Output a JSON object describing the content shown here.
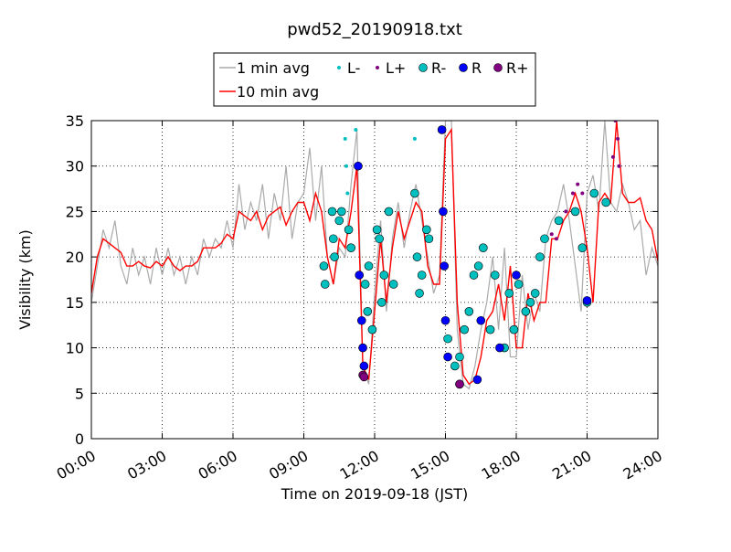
{
  "chart_data": {
    "type": "line",
    "title": "pwd52_20190918.txt",
    "x_label": "Time on 2019-09-18 (JST)",
    "y_label": "Visibility (km)",
    "xlim": [
      0,
      24
    ],
    "ylim": [
      0,
      35
    ],
    "xticks": [
      {
        "value": 0,
        "label": "00:00"
      },
      {
        "value": 3,
        "label": "03:00"
      },
      {
        "value": 6,
        "label": "06:00"
      },
      {
        "value": 9,
        "label": "09:00"
      },
      {
        "value": 12,
        "label": "12:00"
      },
      {
        "value": 15,
        "label": "15:00"
      },
      {
        "value": 18,
        "label": "18:00"
      },
      {
        "value": 21,
        "label": "21:00"
      },
      {
        "value": 24,
        "label": "24:00"
      }
    ],
    "yticks": [
      0,
      5,
      10,
      15,
      20,
      25,
      30,
      35
    ],
    "grid": true,
    "x": [
      0,
      0.25,
      0.5,
      0.75,
      1,
      1.25,
      1.5,
      1.75,
      2,
      2.25,
      2.5,
      2.75,
      3,
      3.25,
      3.5,
      3.75,
      4,
      4.25,
      4.5,
      4.75,
      5,
      5.25,
      5.5,
      5.75,
      6,
      6.25,
      6.5,
      6.75,
      7,
      7.25,
      7.5,
      7.75,
      8,
      8.25,
      8.5,
      8.75,
      9,
      9.25,
      9.5,
      9.75,
      10,
      10.25,
      10.5,
      10.75,
      11,
      11.25,
      11.5,
      11.75,
      12,
      12.25,
      12.5,
      12.75,
      13,
      13.25,
      13.5,
      13.75,
      14,
      14.25,
      14.5,
      14.75,
      15,
      15.25,
      15.5,
      15.75,
      16,
      16.25,
      16.5,
      16.75,
      17,
      17.25,
      17.5,
      17.75,
      18,
      18.25,
      18.5,
      18.75,
      19,
      19.25,
      19.5,
      19.75,
      20,
      20.25,
      20.5,
      20.75,
      21,
      21.25,
      21.5,
      21.75,
      22,
      22.25,
      22.5,
      22.75,
      23,
      23.25,
      23.5,
      23.75,
      24
    ],
    "series": [
      {
        "name": "1 min avg",
        "color": "#aaaaaa",
        "marker": "line",
        "values": [
          15,
          19,
          23,
          21,
          24,
          19,
          17,
          21,
          18,
          20,
          17,
          21,
          18,
          21,
          18,
          20,
          17,
          20,
          18,
          22,
          20,
          22,
          21,
          24,
          21,
          28,
          23,
          26,
          24,
          28,
          22,
          27,
          24,
          30,
          22,
          26,
          27,
          32,
          24,
          30,
          20,
          17,
          21,
          20,
          28,
          34,
          8,
          6,
          16,
          24,
          14,
          22,
          26,
          21,
          25,
          28,
          24,
          20,
          16,
          18,
          35,
          35,
          12,
          6,
          5.5,
          8,
          12,
          15,
          20,
          12,
          21,
          9,
          9,
          18,
          12,
          16,
          14,
          22,
          24,
          25,
          28,
          24,
          19,
          14,
          27,
          29,
          25,
          35,
          26,
          25,
          28,
          26,
          23,
          24,
          18,
          21,
          19
        ]
      },
      {
        "name": "10 min avg",
        "color": "#ff0000",
        "marker": "line",
        "values": [
          16,
          20,
          22,
          21.5,
          21,
          20.5,
          19,
          19,
          19.5,
          19,
          18.8,
          19.5,
          19,
          20,
          19,
          18.5,
          19,
          19,
          19.5,
          21,
          21,
          21,
          21.5,
          22.5,
          22,
          25,
          24.5,
          24,
          25,
          23,
          24.5,
          25,
          25.5,
          23.5,
          25,
          26,
          26,
          24,
          27,
          25,
          20,
          17,
          22,
          21,
          25,
          30,
          8,
          6.5,
          14,
          22,
          15,
          21,
          25,
          22,
          24,
          26,
          25,
          19,
          17,
          17,
          33,
          34,
          15,
          7,
          6,
          6.5,
          9,
          13,
          14,
          17,
          13,
          19,
          10,
          10,
          16,
          13,
          15,
          15,
          22,
          22,
          24,
          25,
          27,
          25,
          21,
          15,
          26,
          27,
          26,
          35,
          27,
          26,
          26,
          26.5,
          24,
          23,
          19.5
        ]
      },
      {
        "name": "L-",
        "color": "#00bfbf",
        "marker": "dot",
        "x": [
          10.75,
          10.8,
          10.85,
          11.2,
          13.7,
          14.85
        ],
        "values": [
          33,
          30,
          27,
          34,
          33,
          34
        ]
      },
      {
        "name": "L+",
        "color": "#800080",
        "marker": "dot",
        "x": [
          19.5,
          19.7,
          20.1,
          20.4,
          20.6,
          20.8,
          22.1,
          22.2,
          22.3,
          22.35
        ],
        "values": [
          22.5,
          22,
          25,
          27,
          28,
          27,
          31,
          35,
          33,
          30
        ]
      },
      {
        "name": "R-",
        "color": "#00bfbf",
        "marker": "circle",
        "x": [
          9.85,
          9.9,
          10.2,
          10.25,
          10.3,
          10.5,
          10.6,
          10.9,
          11.0,
          11.6,
          11.7,
          11.75,
          11.9,
          12.1,
          12.2,
          12.3,
          12.4,
          12.6,
          12.8,
          13.7,
          13.8,
          13.9,
          14.0,
          14.2,
          14.3,
          15.1,
          15.4,
          15.6,
          15.8,
          16.0,
          16.2,
          16.4,
          16.6,
          16.9,
          17.1,
          17.5,
          17.7,
          17.9,
          18.1,
          18.4,
          18.6,
          18.8,
          19.0,
          19.2,
          19.8,
          20.5,
          20.8,
          21.0,
          21.3,
          21.8
        ],
        "values": [
          19,
          17,
          25,
          22,
          20,
          24,
          25,
          23,
          21,
          17,
          14,
          19,
          12,
          23,
          22,
          15,
          18,
          25,
          17,
          27,
          20,
          16,
          18,
          23,
          22,
          11,
          8,
          9,
          12,
          14,
          18,
          19,
          21,
          12,
          18,
          10,
          16,
          12,
          17,
          14,
          15,
          16,
          20,
          22,
          24,
          25,
          21,
          15,
          27,
          26
        ]
      },
      {
        "name": "R",
        "color": "#0000ff",
        "marker": "circle",
        "x": [
          11.3,
          11.35,
          11.45,
          11.5,
          11.55,
          14.85,
          14.9,
          14.95,
          15.0,
          15.1,
          15.6,
          16.35,
          16.5,
          17.3,
          18.0,
          21.0
        ],
        "values": [
          30,
          18,
          13,
          10,
          8,
          34,
          25,
          19,
          13,
          9,
          6,
          6.5,
          13,
          10,
          18,
          15.2
        ]
      },
      {
        "name": "R+",
        "color": "#800080",
        "marker": "circle",
        "x": [
          11.5,
          11.55,
          15.6
        ],
        "values": [
          7,
          6.8,
          6
        ]
      }
    ]
  }
}
